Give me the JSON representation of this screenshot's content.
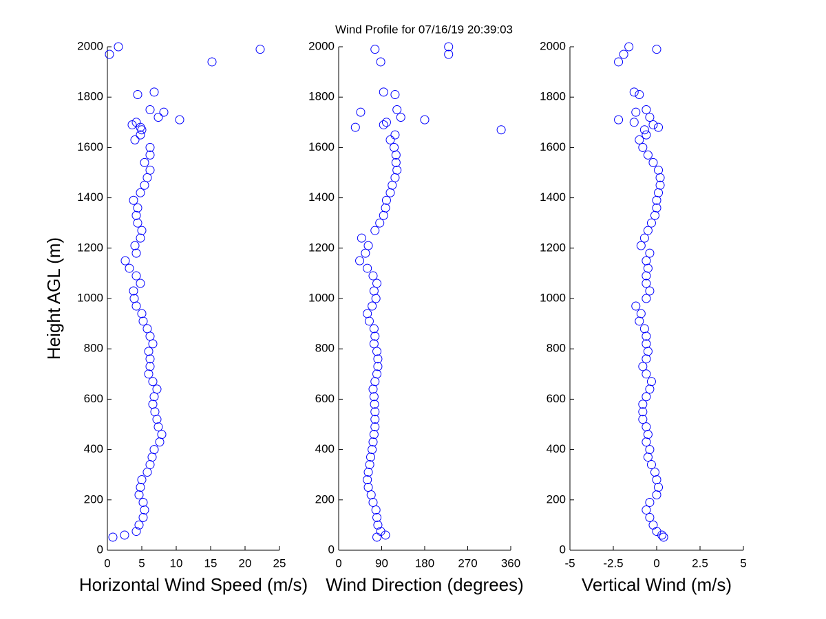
{
  "title": "Wind Profile for  07/16/19 20:39:03",
  "chart_data": [
    {
      "type": "scatter",
      "xlabel": "Horizontal Wind Speed (m/s)",
      "ylabel": "Height AGL (m)",
      "color": "#0000ff",
      "xlim": [
        0,
        25
      ],
      "xticks": [
        0,
        5,
        10,
        15,
        20,
        25
      ],
      "ylim": [
        0,
        2000
      ],
      "yticks": [
        0,
        200,
        400,
        600,
        800,
        1000,
        1200,
        1400,
        1600,
        1800,
        2000
      ],
      "x": [
        0.8,
        2.5,
        4.2,
        4.6,
        5.2,
        5.4,
        5.2,
        4.6,
        4.8,
        5.0,
        5.8,
        6.2,
        6.5,
        6.8,
        7.6,
        7.9,
        7.4,
        7.2,
        6.9,
        6.6,
        6.8,
        7.2,
        6.6,
        6.0,
        6.2,
        6.2,
        6.0,
        6.6,
        6.2,
        5.8,
        5.2,
        5.0,
        4.2,
        3.9,
        3.8,
        4.8,
        4.2,
        3.2,
        2.6,
        4.2,
        4.0,
        4.8,
        5.0,
        4.4,
        4.2,
        4.4,
        3.8,
        4.8,
        5.4,
        5.8,
        6.2,
        5.4,
        6.2,
        6.2,
        4.0,
        4.8,
        5.0,
        4.8,
        3.6,
        4.2,
        10.5,
        7.4,
        8.2,
        6.2,
        4.4,
        6.8,
        15.2,
        0.3,
        22.2,
        1.6
      ],
      "y": [
        52,
        60,
        75,
        100,
        130,
        160,
        190,
        220,
        250,
        280,
        310,
        340,
        370,
        400,
        430,
        460,
        490,
        520,
        550,
        580,
        610,
        640,
        670,
        700,
        730,
        760,
        790,
        820,
        850,
        880,
        910,
        940,
        970,
        1000,
        1030,
        1060,
        1090,
        1120,
        1150,
        1180,
        1210,
        1240,
        1270,
        1300,
        1330,
        1360,
        1390,
        1420,
        1450,
        1480,
        1510,
        1540,
        1570,
        1600,
        1630,
        1650,
        1670,
        1680,
        1690,
        1700,
        1710,
        1720,
        1740,
        1750,
        1810,
        1820,
        1940,
        1970,
        1990,
        2000
      ]
    },
    {
      "type": "scatter",
      "xlabel": "Wind Direction (degrees)",
      "color": "#0000ff",
      "xlim": [
        0,
        360
      ],
      "xticks": [
        0,
        90,
        180,
        270,
        360
      ],
      "ylim": [
        0,
        2000
      ],
      "yticks": [
        0,
        200,
        400,
        600,
        800,
        1000,
        1200,
        1400,
        1600,
        1800,
        2000
      ],
      "x": [
        80,
        98,
        88,
        82,
        80,
        78,
        72,
        68,
        62,
        60,
        62,
        65,
        67,
        70,
        72,
        74,
        76,
        76,
        76,
        75,
        74,
        72,
        76,
        80,
        82,
        82,
        80,
        74,
        76,
        74,
        64,
        60,
        70,
        78,
        74,
        80,
        72,
        60,
        44,
        56,
        62,
        48,
        76,
        86,
        94,
        98,
        100,
        108,
        112,
        118,
        122,
        120,
        120,
        116,
        108,
        118,
        340,
        35,
        94,
        100,
        180,
        130,
        46,
        122,
        118,
        94,
        88,
        230,
        76,
        230
      ],
      "y": [
        52,
        60,
        75,
        100,
        130,
        160,
        190,
        220,
        250,
        280,
        310,
        340,
        370,
        400,
        430,
        460,
        490,
        520,
        550,
        580,
        610,
        640,
        670,
        700,
        730,
        760,
        790,
        820,
        850,
        880,
        910,
        940,
        970,
        1000,
        1030,
        1060,
        1090,
        1120,
        1150,
        1180,
        1210,
        1240,
        1270,
        1300,
        1330,
        1360,
        1390,
        1420,
        1450,
        1480,
        1510,
        1540,
        1570,
        1600,
        1630,
        1650,
        1670,
        1680,
        1690,
        1700,
        1710,
        1720,
        1740,
        1750,
        1810,
        1820,
        1940,
        1970,
        1990,
        2000
      ]
    },
    {
      "type": "scatter",
      "xlabel": "Vertical Wind (m/s)",
      "color": "#0000ff",
      "xlim": [
        -5,
        5
      ],
      "xticks": [
        -5,
        -2.5,
        0,
        2.5,
        5
      ],
      "ylim": [
        0,
        2000
      ],
      "yticks": [
        0,
        200,
        400,
        600,
        800,
        1000,
        1200,
        1400,
        1600,
        1800,
        2000
      ],
      "x": [
        0.4,
        0.3,
        0.0,
        -0.2,
        -0.4,
        -0.6,
        -0.4,
        0.0,
        0.1,
        0.0,
        -0.1,
        -0.3,
        -0.5,
        -0.4,
        -0.6,
        -0.5,
        -0.6,
        -0.8,
        -0.8,
        -0.8,
        -0.6,
        -0.4,
        -0.3,
        -0.6,
        -0.8,
        -0.6,
        -0.5,
        -0.6,
        -0.6,
        -0.7,
        -1.0,
        -0.9,
        -1.2,
        -0.6,
        -0.4,
        -0.6,
        -0.6,
        -0.5,
        -0.6,
        -0.4,
        -0.9,
        -0.7,
        -0.5,
        -0.3,
        -0.1,
        0.0,
        0.0,
        0.1,
        0.2,
        0.2,
        0.1,
        -0.2,
        -0.5,
        -0.8,
        -1.0,
        -0.6,
        -0.7,
        0.1,
        -0.2,
        -1.3,
        -2.2,
        -0.4,
        -1.2,
        -0.6,
        -1.0,
        -1.3,
        -2.2,
        -1.9,
        0.0,
        -1.6
      ],
      "y": [
        52,
        60,
        75,
        100,
        130,
        160,
        190,
        220,
        250,
        280,
        310,
        340,
        370,
        400,
        430,
        460,
        490,
        520,
        550,
        580,
        610,
        640,
        670,
        700,
        730,
        760,
        790,
        820,
        850,
        880,
        910,
        940,
        970,
        1000,
        1030,
        1060,
        1090,
        1120,
        1150,
        1180,
        1210,
        1240,
        1270,
        1300,
        1330,
        1360,
        1390,
        1420,
        1450,
        1480,
        1510,
        1540,
        1570,
        1600,
        1630,
        1650,
        1670,
        1680,
        1690,
        1700,
        1710,
        1720,
        1740,
        1750,
        1810,
        1820,
        1940,
        1970,
        1990,
        2000
      ]
    }
  ]
}
